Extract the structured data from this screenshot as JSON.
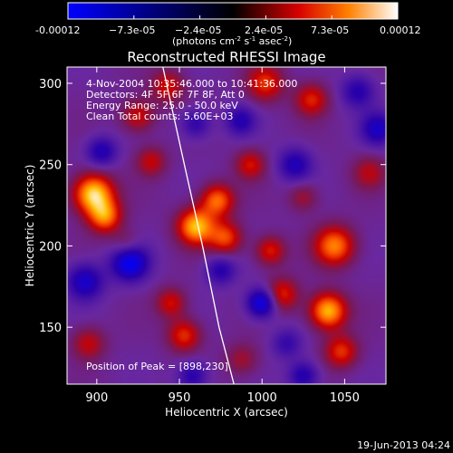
{
  "chart_data": {
    "type": "heatmap",
    "title": "Reconstructed RHESSI Image",
    "xlabel": "Heliocentric X (arcsec)",
    "ylabel": "Heliocentric Y (arcsec)",
    "xlim": [
      882,
      1075
    ],
    "ylim": [
      115,
      310
    ],
    "x_ticks": [
      900,
      950,
      1000,
      1050
    ],
    "y_ticks": [
      150,
      200,
      250,
      300
    ],
    "colorbar": {
      "range": [
        -0.00012,
        0.00012
      ],
      "tick_labels": [
        "-0.00012",
        "−7.3e-05",
        "−2.4e-05",
        "2.4e-05",
        "7.3e-05",
        "0.00012"
      ],
      "units_label": "(photons cm",
      "units_sup1": "-2",
      "units_mid": " s",
      "units_sup2": "-1",
      "units_end": " asec",
      "units_sup3": "-2",
      "units_close": ")"
    },
    "annotations": [
      "4-Nov-2004 10:35:46.000 to 10:41:36.000",
      "Detectors: 4F 5F 6F 7F 8F, Att 0",
      "Energy Range: 25.0 - 50.0 keV",
      "Clean     Total counts: 5.60E+03"
    ],
    "peak_label": "Position of Peak = [898,230]",
    "peak": [
      898,
      230
    ],
    "footer_timestamp": "19-Jun-2013 04:24",
    "limb_curve": [
      [
        940,
        310
      ],
      [
        953,
        250
      ],
      [
        964,
        200
      ],
      [
        974,
        150
      ],
      [
        983,
        115
      ]
    ],
    "blobs": [
      {
        "x": 898,
        "y": 232,
        "v": 1.0,
        "r": 12
      },
      {
        "x": 905,
        "y": 218,
        "v": 0.7,
        "r": 10
      },
      {
        "x": 960,
        "y": 212,
        "v": 0.9,
        "r": 11
      },
      {
        "x": 973,
        "y": 228,
        "v": 0.7,
        "r": 10
      },
      {
        "x": 978,
        "y": 205,
        "v": 0.6,
        "r": 10
      },
      {
        "x": 1040,
        "y": 160,
        "v": 0.9,
        "r": 11
      },
      {
        "x": 1044,
        "y": 200,
        "v": 0.75,
        "r": 12
      },
      {
        "x": 1005,
        "y": 197,
        "v": 0.5,
        "r": 9
      },
      {
        "x": 1012,
        "y": 170,
        "v": 0.55,
        "r": 10
      },
      {
        "x": 1048,
        "y": 135,
        "v": 0.55,
        "r": 10
      },
      {
        "x": 1002,
        "y": 300,
        "v": 0.55,
        "r": 11
      },
      {
        "x": 1030,
        "y": 290,
        "v": 0.5,
        "r": 10
      },
      {
        "x": 993,
        "y": 250,
        "v": 0.45,
        "r": 9
      },
      {
        "x": 925,
        "y": 280,
        "v": 0.45,
        "r": 10
      },
      {
        "x": 943,
        "y": 298,
        "v": 0.45,
        "r": 10
      },
      {
        "x": 953,
        "y": 145,
        "v": 0.55,
        "r": 10
      },
      {
        "x": 945,
        "y": 165,
        "v": 0.45,
        "r": 9
      },
      {
        "x": 895,
        "y": 140,
        "v": 0.4,
        "r": 10
      },
      {
        "x": 933,
        "y": 252,
        "v": 0.4,
        "r": 9
      },
      {
        "x": 918,
        "y": 200,
        "v": 0.3,
        "r": 9
      },
      {
        "x": 1065,
        "y": 245,
        "v": 0.35,
        "r": 10
      },
      {
        "x": 988,
        "y": 130,
        "v": 0.3,
        "r": 10
      },
      {
        "x": 1025,
        "y": 230,
        "v": 0.3,
        "r": 9
      },
      {
        "x": 920,
        "y": 190,
        "v": -0.85,
        "r": 11
      },
      {
        "x": 1000,
        "y": 165,
        "v": -0.8,
        "r": 9
      },
      {
        "x": 1070,
        "y": 272,
        "v": -0.55,
        "r": 10
      },
      {
        "x": 893,
        "y": 178,
        "v": -0.6,
        "r": 11
      },
      {
        "x": 1020,
        "y": 250,
        "v": -0.5,
        "r": 10
      },
      {
        "x": 1058,
        "y": 295,
        "v": -0.45,
        "r": 10
      },
      {
        "x": 987,
        "y": 277,
        "v": -0.45,
        "r": 9
      },
      {
        "x": 903,
        "y": 258,
        "v": -0.5,
        "r": 9
      },
      {
        "x": 960,
        "y": 275,
        "v": -0.4,
        "r": 9
      },
      {
        "x": 975,
        "y": 185,
        "v": -0.45,
        "r": 9
      },
      {
        "x": 958,
        "y": 120,
        "v": -0.45,
        "r": 9
      },
      {
        "x": 1025,
        "y": 120,
        "v": -0.5,
        "r": 9
      },
      {
        "x": 1015,
        "y": 140,
        "v": -0.35,
        "r": 9
      }
    ]
  }
}
